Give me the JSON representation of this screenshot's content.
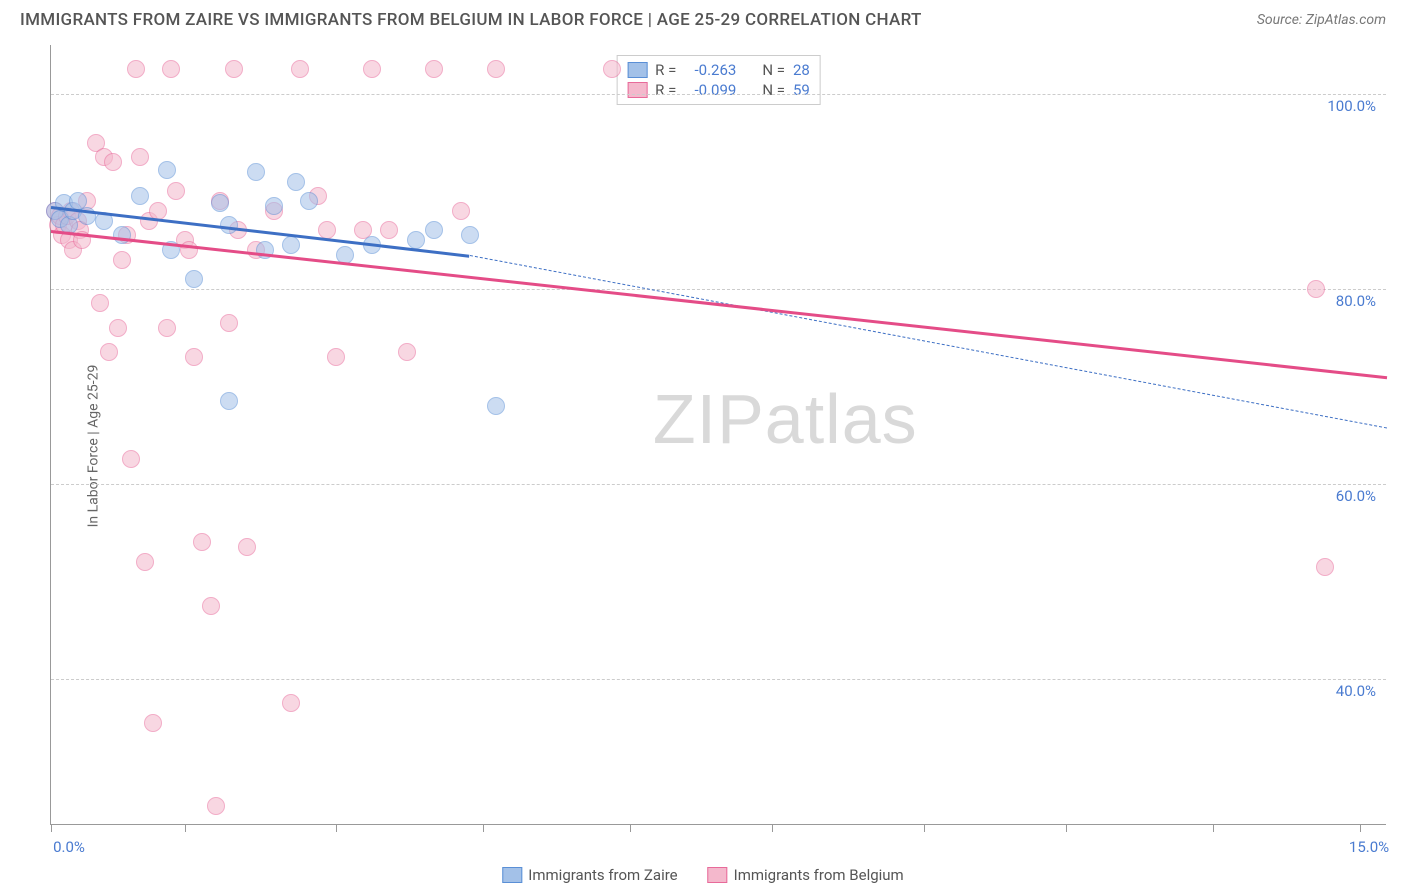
{
  "title": "IMMIGRANTS FROM ZAIRE VS IMMIGRANTS FROM BELGIUM IN LABOR FORCE | AGE 25-29 CORRELATION CHART",
  "source": "Source: ZipAtlas.com",
  "y_axis_label": "In Labor Force | Age 25-29",
  "watermark": "ZIPatlas",
  "chart": {
    "type": "scatter",
    "background_color": "#ffffff",
    "grid_color": "#cccccc",
    "axis_color": "#999999",
    "tick_label_color": "#4a7bd0",
    "axis_label_color": "#666666",
    "xlim": [
      0,
      15
    ],
    "ylim": [
      25,
      105
    ],
    "x_ticks": [
      0,
      1.5,
      3.2,
      4.85,
      6.5,
      8.1,
      9.8,
      11.4,
      13.05,
      14.7
    ],
    "x_tick_labels": {
      "0": "0.0%",
      "15": "15.0%"
    },
    "y_ticks": [
      40,
      60,
      80,
      100
    ],
    "y_tick_labels": {
      "40": "40.0%",
      "60": "60.0%",
      "80": "80.0%",
      "100": "100.0%"
    },
    "marker_radius": 9,
    "marker_opacity": 0.55,
    "series": [
      {
        "name": "Immigrants from Zaire",
        "color_fill": "#a3c1e8",
        "color_stroke": "#5a8fd6",
        "line_color": "#3d6fc4",
        "R": "-0.263",
        "N": "28",
        "trend": {
          "x1": 0,
          "y1": 88.5,
          "x2": 4.7,
          "y2": 83.5,
          "dash_to_x": 15,
          "dash_to_y": 65.8
        },
        "points": [
          [
            0.05,
            88
          ],
          [
            0.1,
            87.2
          ],
          [
            0.15,
            88.8
          ],
          [
            0.2,
            86.5
          ],
          [
            0.25,
            88.0
          ],
          [
            0.3,
            89.0
          ],
          [
            0.4,
            87.5
          ],
          [
            0.6,
            87.0
          ],
          [
            0.8,
            85.5
          ],
          [
            1.0,
            89.5
          ],
          [
            1.3,
            92.2
          ],
          [
            1.35,
            84.0
          ],
          [
            1.6,
            81.0
          ],
          [
            1.9,
            88.8
          ],
          [
            2.0,
            68.5
          ],
          [
            2.0,
            86.5
          ],
          [
            2.3,
            92.0
          ],
          [
            2.4,
            84.0
          ],
          [
            2.5,
            88.5
          ],
          [
            2.7,
            84.5
          ],
          [
            2.75,
            91.0
          ],
          [
            2.9,
            89.0
          ],
          [
            3.3,
            83.5
          ],
          [
            3.6,
            84.5
          ],
          [
            4.1,
            85.0
          ],
          [
            4.3,
            86.0
          ],
          [
            5.0,
            68.0
          ],
          [
            4.7,
            85.5
          ]
        ]
      },
      {
        "name": "Immigrants from Belgium",
        "color_fill": "#f4b8cc",
        "color_stroke": "#e86a9a",
        "line_color": "#e44c87",
        "R": "-0.099",
        "N": "59",
        "trend": {
          "x1": 0,
          "y1": 86.0,
          "x2": 15,
          "y2": 71.0
        },
        "points": [
          [
            0.05,
            88
          ],
          [
            0.08,
            86.5
          ],
          [
            0.1,
            87.5
          ],
          [
            0.12,
            85.5
          ],
          [
            0.15,
            86.5
          ],
          [
            0.18,
            87.5
          ],
          [
            0.2,
            85.0
          ],
          [
            0.22,
            88.0
          ],
          [
            0.25,
            84.0
          ],
          [
            0.3,
            87.0
          ],
          [
            0.32,
            86.0
          ],
          [
            0.35,
            85.0
          ],
          [
            0.4,
            89.0
          ],
          [
            0.5,
            95.0
          ],
          [
            0.55,
            78.5
          ],
          [
            0.6,
            93.5
          ],
          [
            0.65,
            73.5
          ],
          [
            0.7,
            93.0
          ],
          [
            0.75,
            76.0
          ],
          [
            0.8,
            83.0
          ],
          [
            0.85,
            85.5
          ],
          [
            0.9,
            62.5
          ],
          [
            0.95,
            102.5
          ],
          [
            1.0,
            93.5
          ],
          [
            1.05,
            52.0
          ],
          [
            1.1,
            87.0
          ],
          [
            1.15,
            35.5
          ],
          [
            1.2,
            88.0
          ],
          [
            1.3,
            76.0
          ],
          [
            1.35,
            102.5
          ],
          [
            1.4,
            90.0
          ],
          [
            1.5,
            85.0
          ],
          [
            1.55,
            84.0
          ],
          [
            1.6,
            73.0
          ],
          [
            1.7,
            54.0
          ],
          [
            1.8,
            47.5
          ],
          [
            1.85,
            27.0
          ],
          [
            1.9,
            89.0
          ],
          [
            2.0,
            76.5
          ],
          [
            2.05,
            102.5
          ],
          [
            2.1,
            86.0
          ],
          [
            2.2,
            53.5
          ],
          [
            2.3,
            84.0
          ],
          [
            2.5,
            88.0
          ],
          [
            2.7,
            37.5
          ],
          [
            2.8,
            102.5
          ],
          [
            3.0,
            89.5
          ],
          [
            3.1,
            86.0
          ],
          [
            3.2,
            73.0
          ],
          [
            3.5,
            86.0
          ],
          [
            3.6,
            102.5
          ],
          [
            3.8,
            86.0
          ],
          [
            4.0,
            73.5
          ],
          [
            4.3,
            102.5
          ],
          [
            4.6,
            88.0
          ],
          [
            5.0,
            102.5
          ],
          [
            6.3,
            102.5
          ],
          [
            14.2,
            80.0
          ],
          [
            14.3,
            51.5
          ]
        ]
      }
    ]
  },
  "legend_top": {
    "rows": [
      {
        "swatch_fill": "#a3c1e8",
        "swatch_stroke": "#5a8fd6",
        "r_label": "R =",
        "r_val": "-0.263",
        "n_label": "N =",
        "n_val": "28"
      },
      {
        "swatch_fill": "#f4b8cc",
        "swatch_stroke": "#e86a9a",
        "r_label": "R =",
        "r_val": "-0.099",
        "n_label": "N =",
        "n_val": "59"
      }
    ]
  },
  "legend_bottom": {
    "items": [
      {
        "swatch_fill": "#a3c1e8",
        "swatch_stroke": "#5a8fd6",
        "label": "Immigrants from Zaire"
      },
      {
        "swatch_fill": "#f4b8cc",
        "swatch_stroke": "#e86a9a",
        "label": "Immigrants from Belgium"
      }
    ]
  }
}
